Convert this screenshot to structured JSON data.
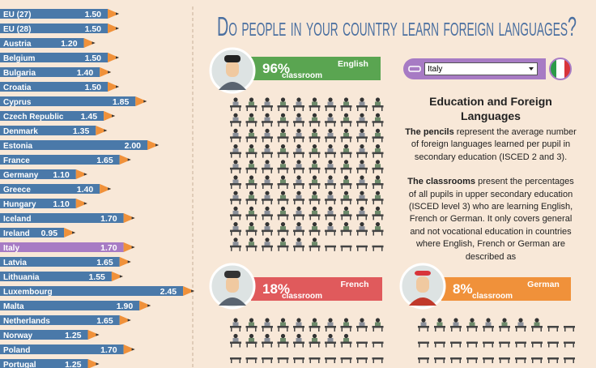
{
  "title": "Do people in your country learn foreign languages?",
  "chart_data": {
    "type": "bar",
    "orientation": "horizontal",
    "categories": [
      "EU (27)",
      "EU (28)",
      "Austria",
      "Belgium",
      "Bulgaria",
      "Croatia",
      "Cyprus",
      "Czech Republic",
      "Denmark",
      "Estonia",
      "France",
      "Germany",
      "Greece",
      "Hungary",
      "Iceland",
      "Ireland",
      "Italy",
      "Latvia",
      "Lithuania",
      "Luxembourg",
      "Malta",
      "Netherlands",
      "Norway",
      "Poland",
      "Portugal"
    ],
    "values": [
      1.5,
      1.5,
      1.2,
      1.5,
      1.4,
      1.5,
      1.85,
      1.45,
      1.35,
      2.0,
      1.65,
      1.1,
      1.4,
      1.1,
      1.7,
      0.95,
      1.7,
      1.65,
      1.55,
      2.45,
      1.9,
      1.65,
      1.25,
      1.7,
      1.25
    ],
    "value_labels": [
      "1.50",
      "1.50",
      "1.20",
      "1.50",
      "1.40",
      "1.50",
      "1.85",
      "1.45",
      "1.35",
      "2.00",
      "1.65",
      "1.10",
      "1.40",
      "1.10",
      "1.70",
      "0.95",
      "1.70",
      "1.65",
      "1.55",
      "2.45",
      "1.90",
      "1.65",
      "1.25",
      "1.70",
      "1.25"
    ],
    "xlim": [
      0,
      2.5
    ],
    "color": "#4a79a9",
    "highlight_color": "#a77bc4",
    "tip_color": "#f0913a"
  },
  "selector": {
    "selected": "Italy"
  },
  "classrooms": [
    {
      "language": "English",
      "percent": 96,
      "percent_label": "96%",
      "caption": "classroom",
      "color": "#5aa551"
    },
    {
      "language": "French",
      "percent": 18,
      "percent_label": "18%",
      "caption": "classroom",
      "color": "#e05a5c"
    },
    {
      "language": "German",
      "percent": 8,
      "percent_label": "8%",
      "caption": "classroom",
      "color": "#f0913a"
    }
  ],
  "info": {
    "heading": "Education and Foreign Languages",
    "pencils_bold": "The pencils",
    "pencils_text": "represent the average number of foreign languages learned per pupil in secondary education (ISCED 2 and 3).",
    "classrooms_bold": "The classrooms",
    "classrooms_text": "present the percentages of all pupils in upper secondary education (ISCED level 3) who are learning English, French or German. It only covers general and not vocational education in countries where English, French or German are described as"
  }
}
